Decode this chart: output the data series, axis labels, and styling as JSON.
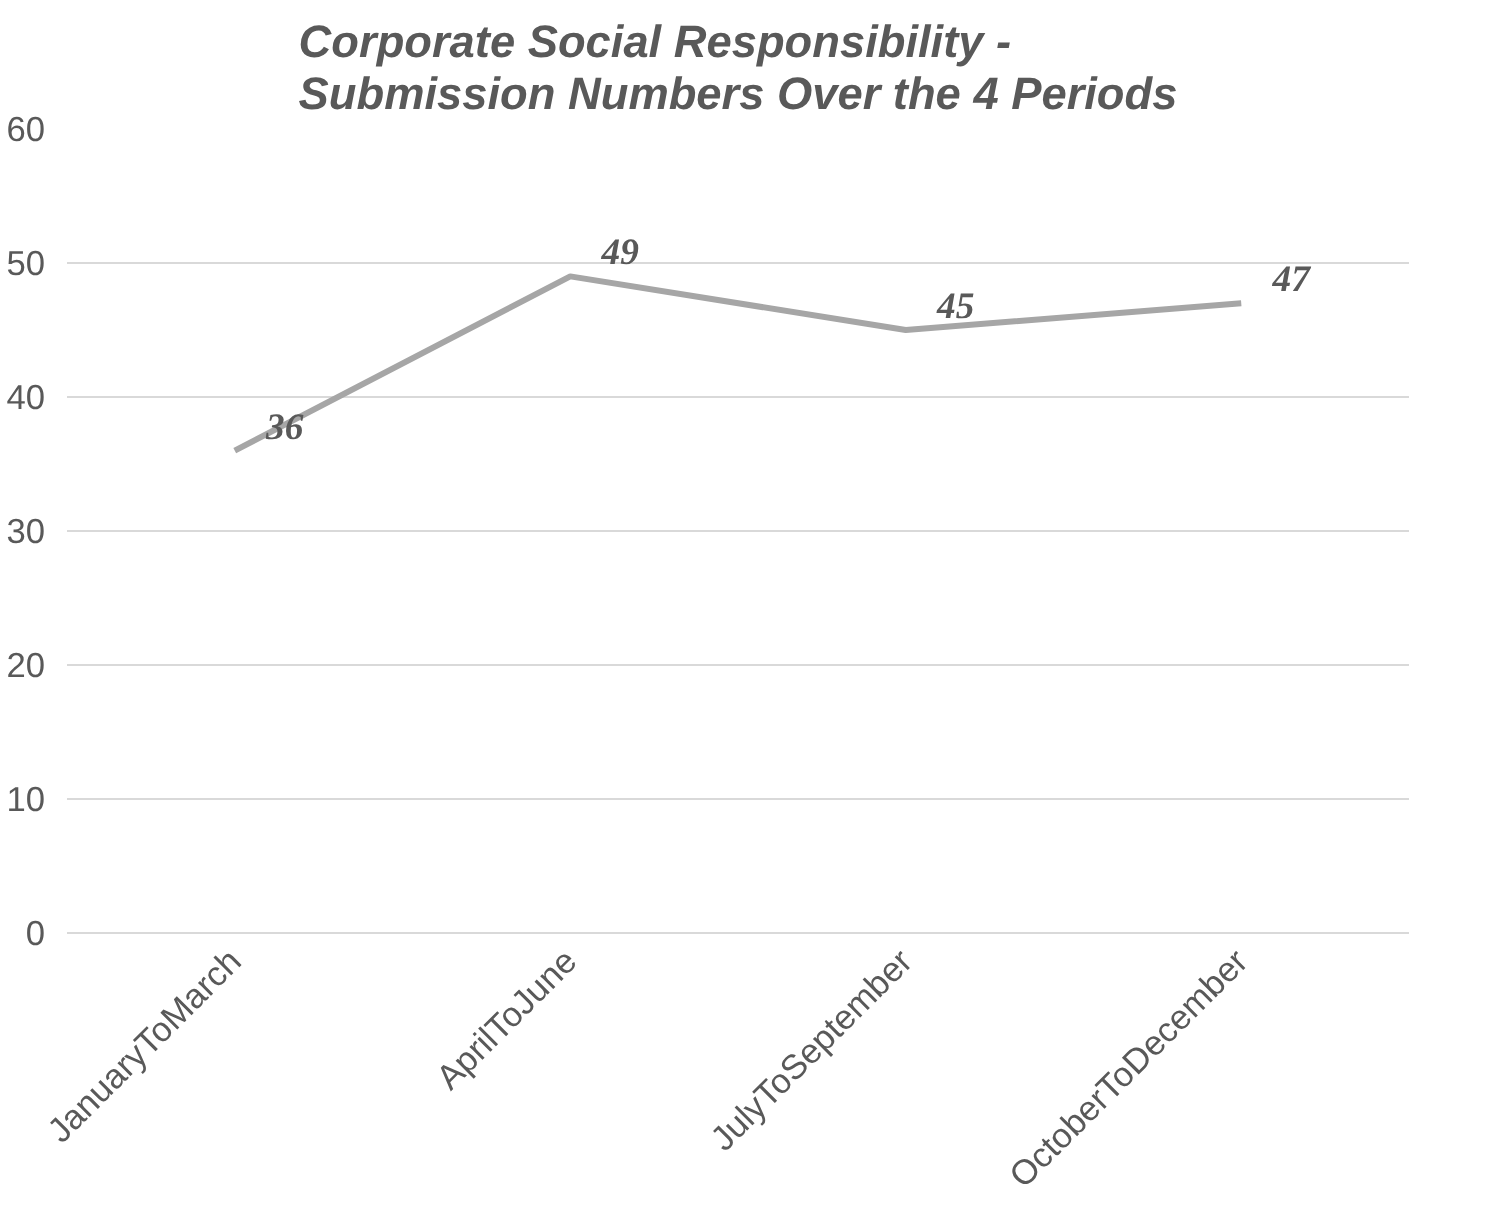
{
  "chart_data": {
    "type": "line",
    "title": "Corporate Social Responsibility - Submission Numbers Over the 4 Periods",
    "categories": [
      "JanuaryToMarch",
      "AprilToJune",
      "JulyToSeptember",
      "OctoberToDecember"
    ],
    "series": [
      {
        "color": "#a6a6a6",
        "values": [
          36,
          49,
          45,
          47
        ]
      }
    ],
    "ylim": [
      0,
      60
    ],
    "yticks": [
      0,
      10,
      20,
      30,
      40,
      50,
      60
    ],
    "grid": "y",
    "data_labels": true,
    "marker": "none",
    "line_style": "solid"
  }
}
